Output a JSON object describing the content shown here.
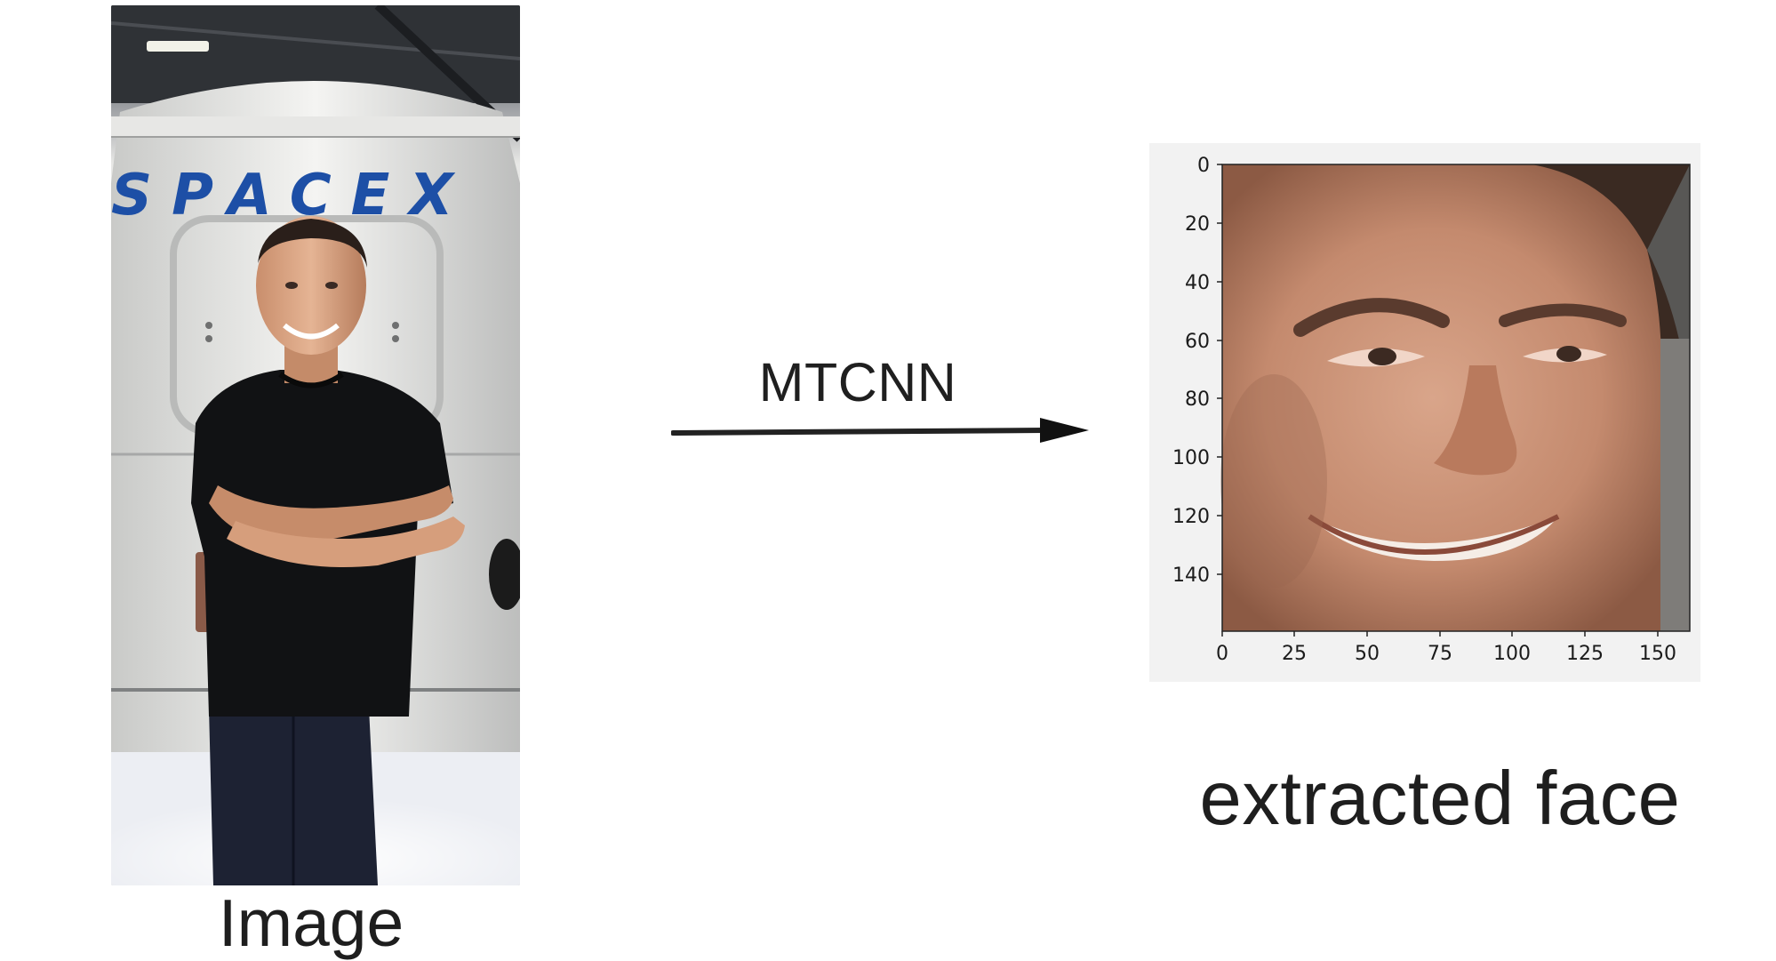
{
  "input": {
    "caption": "Image",
    "photo_text": "SPACEX"
  },
  "process": {
    "method_label": "MTCNN"
  },
  "output": {
    "caption": "extracted face",
    "y_ticks": [
      "0",
      "20",
      "40",
      "60",
      "80",
      "100",
      "120",
      "140"
    ],
    "x_ticks": [
      "0",
      "25",
      "50",
      "75",
      "100",
      "125",
      "150"
    ]
  },
  "colors": {
    "text": "#1e1e1e",
    "logo_blue": "#1d4fa6",
    "plot_bg": "#f2f2f2"
  }
}
